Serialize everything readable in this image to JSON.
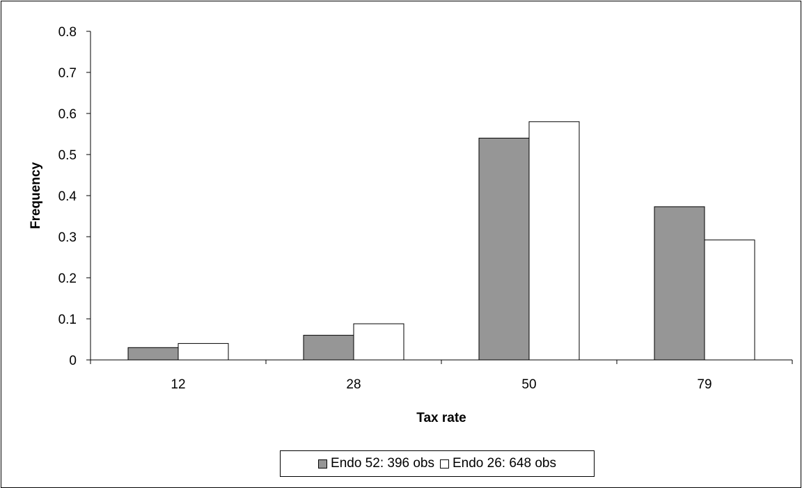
{
  "chart_data": {
    "type": "bar",
    "categories": [
      "12",
      "28",
      "50",
      "79"
    ],
    "series": [
      {
        "name": "Endo 52: 396 obs",
        "values": [
          0.03,
          0.06,
          0.54,
          0.373
        ],
        "color": "#969696"
      },
      {
        "name": "Endo 26: 648 obs",
        "values": [
          0.04,
          0.088,
          0.58,
          0.292
        ],
        "color": "#ffffff"
      }
    ],
    "title": "",
    "xlabel": "Tax rate",
    "ylabel": "Frequency",
    "ylim": [
      0,
      0.8
    ],
    "yticks": [
      "0",
      "0.1",
      "0.2",
      "0.3",
      "0.4",
      "0.5",
      "0.6",
      "0.7",
      "0.8"
    ],
    "grid": false,
    "legend_position": "bottom"
  }
}
